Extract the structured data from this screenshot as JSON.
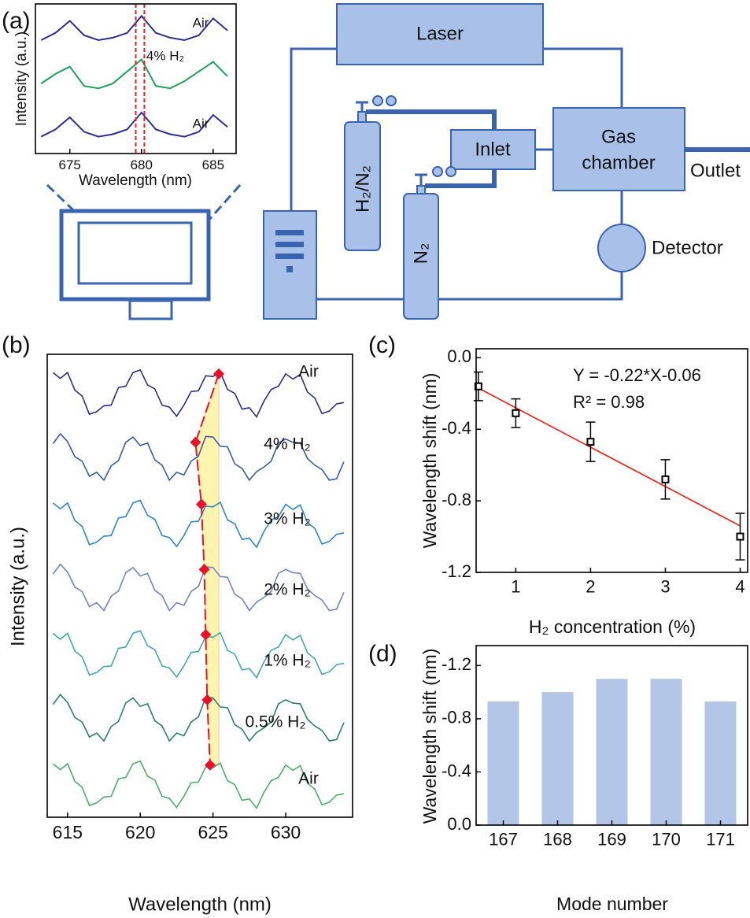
{
  "panel_labels": [
    "(a)",
    "(b)",
    "(c)",
    "(d)"
  ],
  "diagram": {
    "laser": "Laser",
    "gas_chamber": [
      "Gas",
      "chamber"
    ],
    "inlet": "Inlet",
    "outlet": "Outlet",
    "detector": "Detector",
    "cylinder_1": "H₂/N₂",
    "cylinder_2": "N₂"
  },
  "chart_data": [
    {
      "type": "line",
      "x_label": "Wavelength (nm)",
      "y_label": "Intensity (a.u.)",
      "x": [
        673,
        674,
        675,
        676,
        677,
        678,
        679,
        680,
        681,
        682,
        683,
        684,
        685,
        686
      ],
      "series": [
        {
          "name": "Air",
          "color": "#2b2f8f",
          "values": [
            2.85,
            3.0,
            3.25,
            2.95,
            2.85,
            2.9,
            3.0,
            3.35,
            3.0,
            2.9,
            2.85,
            2.95,
            3.3,
            3.05
          ]
        },
        {
          "name": "4% H₂",
          "color": "#1fa05a",
          "values": [
            1.95,
            2.15,
            2.3,
            1.9,
            1.85,
            1.95,
            2.2,
            2.45,
            1.9,
            1.85,
            2.0,
            2.2,
            2.4,
            2.1
          ]
        },
        {
          "name": "Air",
          "color": "#2b2f8f",
          "values": [
            0.85,
            1.0,
            1.25,
            0.95,
            0.85,
            0.9,
            1.0,
            1.35,
            1.0,
            0.9,
            0.85,
            0.95,
            1.3,
            1.05
          ]
        }
      ],
      "reference_lines": {
        "x": [
          679.6,
          680.2
        ],
        "color": "#e02020"
      },
      "xlim": [
        672.6,
        686.6
      ],
      "ylim": [
        0.5,
        3.6
      ],
      "xticks": [
        675,
        680,
        685
      ]
    },
    {
      "type": "line",
      "x_label": "Wavelength (nm)",
      "y_label": "Intensity (a.u.)",
      "x": [
        614,
        614.5,
        615,
        615.5,
        616,
        616.5,
        617,
        617.5,
        618,
        618.5,
        619,
        619.5,
        620,
        620.5,
        621,
        621.5,
        622,
        622.5,
        623,
        623.5,
        624,
        624.5,
        625,
        625.5,
        626,
        626.5,
        627,
        627.5,
        628,
        628.5,
        629,
        629.5,
        630,
        630.5,
        631,
        631.5,
        632,
        632.5,
        633,
        633.5,
        634
      ],
      "series": [
        {
          "name": "Air",
          "color": "#2a2f8a",
          "values": [
            7.32,
            7.23,
            7.32,
            7.05,
            6.96,
            6.68,
            6.72,
            6.81,
            6.82,
            7.09,
            7.11,
            7.32,
            7.36,
            7.13,
            7.07,
            6.82,
            6.79,
            6.65,
            6.82,
            7.03,
            7.04,
            7.27,
            7.26,
            7.33,
            7.06,
            7.0,
            6.76,
            6.78,
            6.64,
            6.88,
            7.06,
            7.11,
            7.3,
            7.22,
            7.29,
            7.02,
            6.93,
            6.69,
            6.73,
            6.84,
            6.86
          ]
        },
        {
          "name": "4% H₂",
          "color": "#3b5aa8",
          "values": [
            6.23,
            6.38,
            6.26,
            6.03,
            5.96,
            5.73,
            5.79,
            5.67,
            5.89,
            5.97,
            6.25,
            6.33,
            6.2,
            6.24,
            5.98,
            5.9,
            5.67,
            5.79,
            5.75,
            5.96,
            6.04,
            6.34,
            6.33,
            6.19,
            6.18,
            5.92,
            5.85,
            5.67,
            5.8,
            5.87,
            5.96,
            6.24,
            6.3,
            6.25,
            6.24,
            6.0,
            5.9,
            5.83,
            5.67,
            5.69,
            5.95
          ]
        },
        {
          "name": "3% H₂",
          "color": "#2f86c2",
          "values": [
            5.32,
            5.23,
            5.32,
            5.05,
            4.96,
            4.68,
            4.72,
            4.81,
            4.82,
            5.09,
            5.11,
            5.32,
            5.36,
            5.13,
            5.07,
            4.82,
            4.79,
            4.65,
            4.82,
            5.03,
            5.04,
            5.27,
            5.26,
            5.33,
            5.06,
            5.0,
            4.76,
            4.78,
            4.64,
            4.88,
            5.06,
            5.11,
            5.3,
            5.22,
            5.29,
            5.02,
            4.93,
            4.69,
            4.73,
            4.84,
            4.86
          ]
        },
        {
          "name": "2% H₂",
          "color": "#6f86c4",
          "values": [
            4.23,
            4.38,
            4.26,
            4.03,
            3.96,
            3.73,
            3.79,
            3.67,
            3.89,
            3.97,
            4.25,
            4.33,
            4.2,
            4.24,
            3.98,
            3.9,
            3.67,
            3.79,
            3.75,
            3.96,
            4.04,
            4.34,
            4.33,
            4.19,
            4.18,
            3.92,
            3.85,
            3.67,
            3.8,
            3.87,
            3.96,
            4.24,
            4.3,
            4.25,
            4.24,
            4.0,
            3.9,
            3.83,
            3.67,
            3.69,
            3.95
          ]
        },
        {
          "name": "1% H₂",
          "color": "#44a8b0",
          "values": [
            3.32,
            3.23,
            3.32,
            3.05,
            2.96,
            2.68,
            2.72,
            2.81,
            2.82,
            3.09,
            3.11,
            3.32,
            3.36,
            3.13,
            3.07,
            2.82,
            2.79,
            2.65,
            2.82,
            3.03,
            3.04,
            3.27,
            3.26,
            3.33,
            3.06,
            3.0,
            2.76,
            2.78,
            2.64,
            2.88,
            3.06,
            3.11,
            3.3,
            3.22,
            3.29,
            3.02,
            2.93,
            2.69,
            2.73,
            2.84,
            2.86
          ]
        },
        {
          "name": "0.5% H₂",
          "color": "#2f7f6a",
          "values": [
            2.23,
            2.38,
            2.26,
            2.03,
            1.96,
            1.73,
            1.79,
            1.67,
            1.89,
            1.97,
            2.25,
            2.33,
            2.2,
            2.24,
            1.98,
            1.9,
            1.67,
            1.79,
            1.75,
            1.96,
            2.04,
            2.34,
            2.33,
            2.19,
            2.18,
            1.92,
            1.85,
            1.67,
            1.8,
            1.87,
            1.96,
            2.24,
            2.3,
            2.25,
            2.24,
            2.0,
            1.9,
            1.83,
            1.67,
            1.69,
            1.95
          ]
        },
        {
          "name": "Air",
          "color": "#4fae6a",
          "values": [
            1.32,
            1.23,
            1.32,
            1.05,
            0.96,
            0.68,
            0.72,
            0.81,
            0.82,
            1.09,
            1.11,
            1.32,
            1.36,
            1.13,
            1.07,
            0.82,
            0.79,
            0.65,
            0.82,
            1.03,
            1.04,
            1.27,
            1.26,
            1.33,
            1.06,
            1.0,
            0.76,
            0.78,
            0.64,
            0.88,
            1.06,
            1.11,
            1.3,
            1.22,
            1.29,
            1.02,
            0.93,
            0.69,
            0.73,
            0.84,
            0.86
          ]
        }
      ],
      "peaks": {
        "x": [
          625.4,
          623.8,
          624.2,
          624.4,
          624.5,
          624.6,
          624.8
        ],
        "y": [
          7.3,
          6.25,
          5.3,
          4.3,
          3.3,
          2.3,
          1.3
        ],
        "color": "#e8102a"
      },
      "xlim": [
        613.6,
        634.6
      ],
      "ylim": [
        0.5,
        7.6
      ],
      "xticks": [
        615,
        620,
        625,
        630
      ]
    },
    {
      "type": "scatter",
      "x_label": "H₂ concentration (%)",
      "y_label": "Wavelength shift (nm)",
      "annotations": [
        "Y = -0.22*X-0.06",
        "R² = 0.98"
      ],
      "x": [
        0.5,
        1,
        2,
        3,
        4
      ],
      "series": [
        {
          "color": "#000000",
          "values": [
            -0.16,
            -0.31,
            -0.47,
            -0.68,
            -1.0
          ],
          "errors": [
            0.08,
            0.08,
            0.11,
            0.11,
            0.13
          ]
        }
      ],
      "fit": {
        "x": [
          0.5,
          4
        ],
        "y": [
          -0.17,
          -0.94
        ],
        "color": "#e8302a"
      },
      "xlim": [
        0.47,
        4.1
      ],
      "ylim": [
        -1.2,
        0.05
      ],
      "xticks": [
        1,
        2,
        3,
        4
      ],
      "yticks": [
        {
          "value": 0,
          "label": "0.0"
        },
        -0.4,
        -0.8,
        -1.2
      ]
    },
    {
      "type": "bar",
      "x_label": "Mode number",
      "y_label": "Wavelength shift (nm)",
      "categories": [
        "167",
        "168",
        "169",
        "170",
        "171"
      ],
      "values": [
        -0.93,
        -1.0,
        -1.1,
        -1.1,
        -0.93
      ],
      "color": "#b4c6e7",
      "ylim": [
        0,
        -1.35
      ],
      "yticks": [
        {
          "value": 0,
          "label": "0.0"
        },
        -0.4,
        -0.8,
        -1.2
      ]
    }
  ]
}
